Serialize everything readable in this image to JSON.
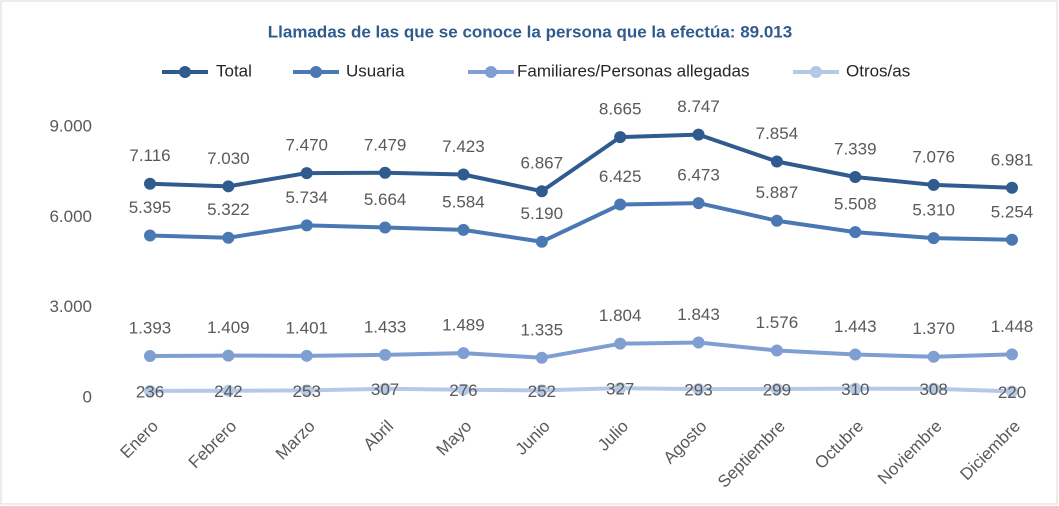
{
  "chart_data": {
    "type": "line",
    "title": "Llamadas de las que se conoce la persona que la efectúa: 89.013",
    "categories": [
      "Enero",
      "Febrero",
      "Marzo",
      "Abril",
      "Mayo",
      "Junio",
      "Julio",
      "Agosto",
      "Septiembre",
      "Octubre",
      "Noviembre",
      "Diciembre"
    ],
    "series": [
      {
        "name": "Total",
        "color": "#2f5b8e",
        "values": [
          7116,
          7030,
          7470,
          7479,
          7423,
          6867,
          8665,
          8747,
          7854,
          7339,
          7076,
          6981
        ],
        "value_labels": [
          "7.116",
          "7.030",
          "7.470",
          "7.479",
          "7.423",
          "6.867",
          "8.665",
          "8.747",
          "7.854",
          "7.339",
          "7.076",
          "6.981"
        ]
      },
      {
        "name": "Usuaria",
        "color": "#4a78b2",
        "values": [
          5395,
          5322,
          5734,
          5664,
          5584,
          5190,
          6425,
          6473,
          5887,
          5508,
          5310,
          5254
        ],
        "value_labels": [
          "5.395",
          "5.322",
          "5.734",
          "5.664",
          "5.584",
          "5.190",
          "6.425",
          "6.473",
          "5.887",
          "5.508",
          "5.310",
          "5.254"
        ]
      },
      {
        "name": "Familiares/Personas allegadas",
        "color": "#7f9fd2",
        "values": [
          1393,
          1409,
          1401,
          1433,
          1489,
          1335,
          1804,
          1843,
          1576,
          1443,
          1370,
          1448
        ],
        "value_labels": [
          "1.393",
          "1.409",
          "1.401",
          "1.433",
          "1.489",
          "1.335",
          "1.804",
          "1.843",
          "1.576",
          "1.443",
          "1.370",
          "1.448"
        ]
      },
      {
        "name": "Otros/as",
        "color": "#b5c9e7",
        "values": [
          236,
          242,
          253,
          307,
          276,
          252,
          327,
          293,
          299,
          310,
          308,
          220
        ]
      }
    ],
    "ylim": [
      0,
      9000
    ],
    "yticks": [
      0,
      {
        "value": 3000,
        "label": "3.000"
      },
      {
        "value": 6000,
        "label": "6.000"
      },
      {
        "value": 9000,
        "label": "9.000"
      }
    ],
    "grid": false,
    "legend": "top"
  }
}
